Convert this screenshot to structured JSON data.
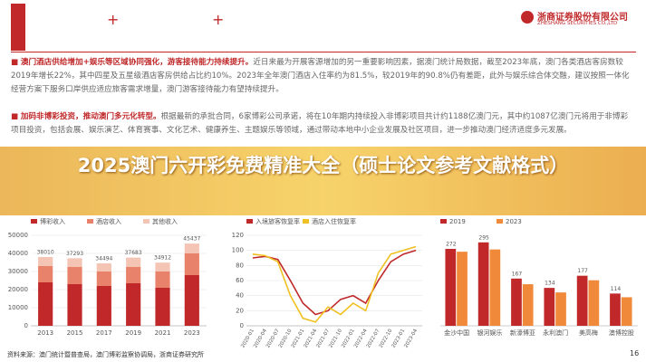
{
  "header": {
    "company": "浙商证券股份有限公司",
    "company_en": "ZHESHANG SECURITIES CO.,LTD"
  },
  "bullets": [
    {
      "lead": "澳门酒店供给增加+娱乐等区域协同强化，游客接待能力持续提升。",
      "body": "近日来最为开展客源增加的另一重要影响因素，据澳门统计局数据，截至2023年底，澳门各类酒店客房数较2019年增长22%，其中四星及五星级酒店客房供给占比约10%。2023年全年澳门酒店入住率约为81.5%，较2019年的90.8%仍有差距，此外与娱乐综合体交融，建议按照一体化经营方案下服务口岸供应适应旅客需求增量，澳门游客接待能力有望持续提升。"
    },
    {
      "lead": "加码非博彩投资，推动澳门多元化转型。",
      "body": "根据最新的承批合同，6家博彩公司承诺，将在10年期内持续投入非博彩项目共计约1188亿澳门元，其中约1087亿澳门元将用于非博彩项目投资，包括会展、娱乐演艺、体育赛事、文化艺术、健康养生、主题娱乐等领域，通过带动本地中小企业发展及社区项目，进一步推动澳门经济适度多元发展。"
    }
  ],
  "banner": "2025澳门六开彩免费精准大全（硕士论文参考文献格式）",
  "chart_data": [
    {
      "type": "stacked_bar",
      "categories": [
        "2013",
        "2015",
        "2017",
        "2019",
        "2021",
        "2023"
      ],
      "series": [
        {
          "name": "博彩收入",
          "color": "#c0282a",
          "values": [
            24000,
            23000,
            22000,
            23500,
            21000,
            28000
          ]
        },
        {
          "name": "酒店收入",
          "color": "#e8826a",
          "values": [
            9000,
            9500,
            8000,
            9000,
            9000,
            12000
          ]
        },
        {
          "name": "其他收入",
          "color": "#f4c4b4",
          "values": [
            5010,
            4793,
            4494,
            5183,
            4912,
            5437
          ]
        }
      ],
      "total_labels": [
        "38010",
        "37293",
        "34494",
        "37683",
        "34912",
        "45437"
      ],
      "ylim": [
        0,
        50000
      ],
      "yticks": [
        0,
        10000,
        20000,
        30000,
        40000,
        50000
      ],
      "grid": true
    },
    {
      "type": "line",
      "categories": [
        "2020-01",
        "2020-04",
        "2020-07",
        "2020-10",
        "2021-01",
        "2021-04",
        "2021-07",
        "2021-10",
        "2022-01",
        "2022-04",
        "2022-07",
        "2022-10",
        "2023-01",
        "2023-04"
      ],
      "series": [
        {
          "name": "入境旅客恢复率",
          "color": "#c0282a",
          "values": [
            90,
            92,
            88,
            60,
            30,
            15,
            20,
            35,
            40,
            30,
            60,
            85,
            95,
            100
          ]
        },
        {
          "name": "酒店入住恢复率",
          "color": "#f0c020",
          "values": [
            95,
            93,
            85,
            40,
            10,
            5,
            25,
            15,
            30,
            20,
            70,
            95,
            100,
            105
          ]
        }
      ],
      "ylim": [
        0,
        120
      ],
      "yticks": [
        0,
        20,
        40,
        60,
        80,
        100,
        120
      ],
      "grid": true
    },
    {
      "type": "grouped_bar",
      "categories": [
        "金沙中国",
        "银河娱乐",
        "新濠博亚",
        "永利澳门",
        "美高梅",
        "澳博控股"
      ],
      "series": [
        {
          "name": "2019",
          "color": "#c0282a",
          "values": [
            272,
            295,
            167,
            134,
            177,
            114
          ]
        },
        {
          "name": "2023",
          "color": "#f08a3a",
          "values": [
            262,
            270,
            147,
            118,
            161,
            101
          ]
        }
      ],
      "ylim": [
        0,
        320
      ]
    }
  ],
  "footer": {
    "source": "资料来源：澳门统计暨普查局，澳门博彩监察协调局，浙商证券研究所",
    "page": "16"
  }
}
